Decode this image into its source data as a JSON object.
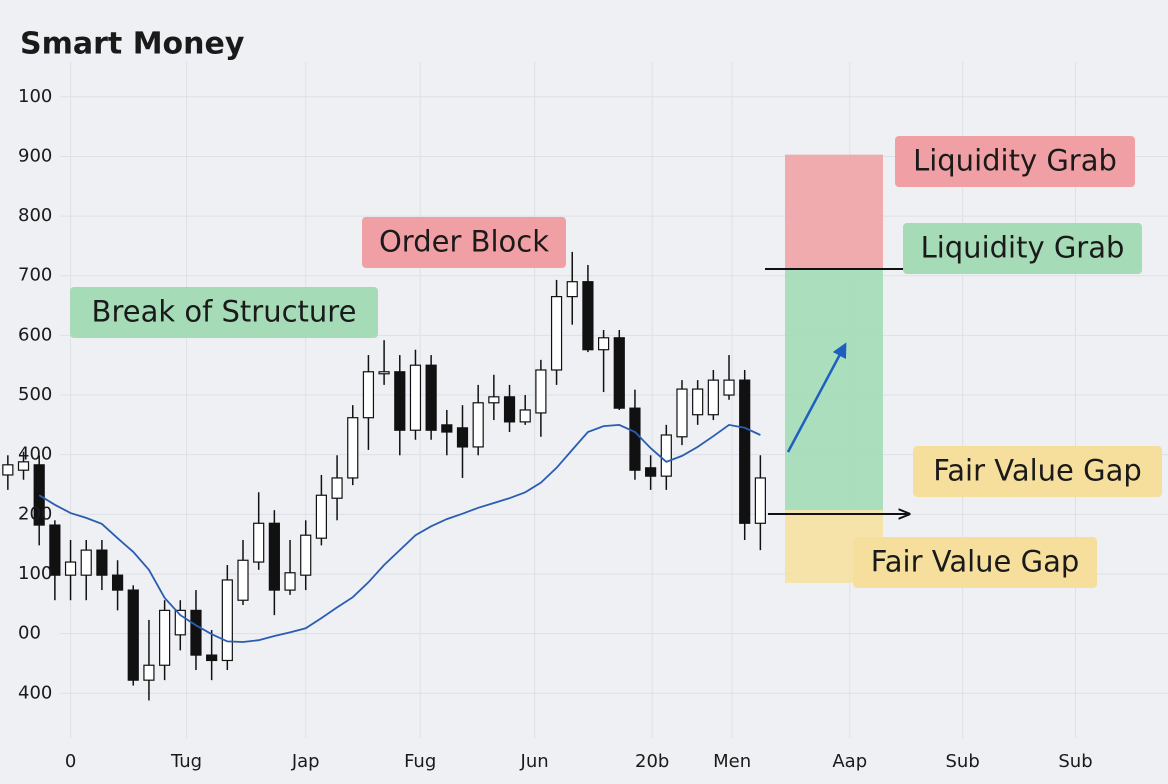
{
  "chart_data": {
    "type": "candlestick",
    "title": "Smart Money",
    "x": [
      0,
      1,
      2,
      3,
      4,
      5,
      6,
      7,
      8,
      9,
      10,
      11,
      12,
      13,
      14,
      15,
      16,
      17,
      18,
      19,
      20,
      21,
      22,
      23,
      24,
      25,
      26,
      27,
      28,
      29,
      30,
      31,
      32,
      33,
      34,
      35,
      36,
      37,
      38,
      39,
      40,
      41,
      42,
      43,
      44,
      45,
      46,
      47,
      48
    ],
    "open": [
      366,
      374,
      383,
      282,
      198,
      198,
      240,
      198,
      173,
      22,
      47,
      98,
      139,
      64,
      55,
      156,
      220,
      285,
      173,
      198,
      260,
      327,
      361,
      462,
      537,
      539,
      441,
      550,
      450,
      445,
      413,
      487,
      497,
      455,
      470,
      542,
      665,
      690,
      576,
      596,
      478,
      378,
      364,
      430,
      467,
      467,
      500,
      525,
      285
    ],
    "high": [
      399,
      405,
      399,
      290,
      257,
      257,
      257,
      223,
      181,
      123,
      156,
      156,
      173,
      106,
      215,
      257,
      337,
      307,
      257,
      290,
      366,
      399,
      483,
      567,
      592,
      567,
      576,
      567,
      475,
      483,
      517,
      534,
      517,
      500,
      559,
      693,
      740,
      718,
      609,
      609,
      509,
      399,
      450,
      525,
      525,
      542,
      567,
      542,
      399
    ],
    "low": [
      341,
      358,
      248,
      156,
      156,
      156,
      173,
      139,
      13,
      -12,
      22,
      72,
      39,
      22,
      39,
      148,
      207,
      131,
      165,
      173,
      248,
      290,
      349,
      408,
      517,
      399,
      425,
      425,
      399,
      361,
      399,
      458,
      438,
      450,
      430,
      517,
      618,
      572,
      505,
      475,
      358,
      341,
      341,
      416,
      450,
      458,
      492,
      257,
      240
    ],
    "close": [
      383,
      388,
      282,
      198,
      220,
      240,
      198,
      173,
      22,
      47,
      139,
      139,
      64,
      55,
      190,
      223,
      285,
      173,
      202,
      265,
      332,
      361,
      462,
      539,
      539,
      441,
      550,
      441,
      438,
      413,
      487,
      497,
      455,
      475,
      542,
      665,
      690,
      576,
      596,
      478,
      374,
      364,
      433,
      510,
      510,
      525,
      525,
      285,
      361
    ],
    "ma": [
      null,
      null,
      332,
      316,
      302,
      294,
      284,
      260,
      237,
      207,
      160,
      131,
      114,
      99,
      87,
      86,
      89,
      96,
      102,
      109,
      126,
      144,
      161,
      186,
      215,
      240,
      265,
      280,
      292,
      301,
      311,
      319,
      327,
      337,
      353,
      378,
      408,
      438,
      448,
      450,
      438,
      411,
      388,
      398,
      413,
      431,
      450,
      445,
      433
    ],
    "up_color": "#ffffff",
    "down_color": "#111111",
    "ma_color": "#2a5db0",
    "xlim": [
      -0.5,
      74
    ],
    "ylim": [
      -80,
      1060
    ],
    "xticks": [
      {
        "value": 4,
        "label": "0"
      },
      {
        "value": 11.4,
        "label": "Tug"
      },
      {
        "value": 19,
        "label": "Jap"
      },
      {
        "value": 26.3,
        "label": "Fug"
      },
      {
        "value": 33.6,
        "label": "Jun"
      },
      {
        "value": 41.1,
        "label": "20b"
      },
      {
        "value": 46.2,
        "label": "Men"
      },
      {
        "value": 53.7,
        "label": "Aap"
      },
      {
        "value": 60.9,
        "label": "Sub"
      },
      {
        "value": 68.1,
        "label": "Sub"
      }
    ],
    "yticks": [
      {
        "value": 1000,
        "label": "100"
      },
      900,
      800,
      700,
      600,
      500,
      400,
      {
        "value": 300,
        "label": "200"
      },
      {
        "value": 200,
        "label": "100"
      },
      {
        "value": 100,
        "label": "00"
      },
      {
        "value": 0,
        "label": "400"
      }
    ],
    "grid": true,
    "zones": [
      {
        "from": 713,
        "to": 903,
        "color": "#f0a3a6"
      },
      {
        "from": 307,
        "to": 713,
        "color": "#a2dcb7"
      },
      {
        "from": 185,
        "to": 307,
        "color": "#f6e1a2"
      }
    ],
    "annotations": [
      {
        "text": "Break of Structure",
        "color": "#a6dbb8"
      },
      {
        "text": "Order Block",
        "color": "#f0a0a5"
      },
      {
        "text": "Liquidity Grab",
        "color": "#f0a0a5"
      },
      {
        "text": "Liquidity Grab",
        "color": "#a6dbb8"
      },
      {
        "text": "Fair Value Gap",
        "color": "#f6df9c"
      },
      {
        "text": "Fair Value Gap",
        "color": "#f6df9c"
      }
    ]
  }
}
